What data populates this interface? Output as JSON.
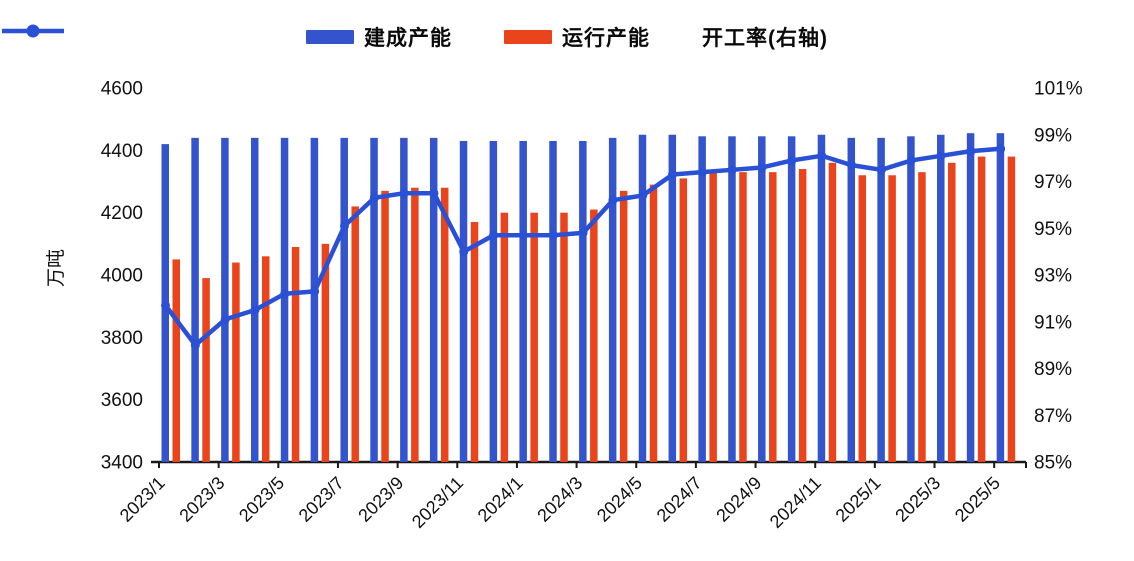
{
  "chart_data": {
    "type": "bar",
    "title": "",
    "grid": false,
    "legend_position": "top",
    "categories": [
      "2023/1",
      "2023/2",
      "2023/3",
      "2023/4",
      "2023/5",
      "2023/6",
      "2023/7",
      "2023/8",
      "2023/9",
      "2023/10",
      "2023/11",
      "2023/12",
      "2024/1",
      "2024/2",
      "2024/3",
      "2024/4",
      "2024/5",
      "2024/6",
      "2024/7",
      "2024/8",
      "2024/9",
      "2024/10",
      "2024/11",
      "2024/12",
      "2025/1",
      "2025/2",
      "2025/3",
      "2025/4",
      "2025/5"
    ],
    "x_tick_labels": [
      "2023/1",
      "2023/3",
      "2023/5",
      "2023/7",
      "2023/9",
      "2023/11",
      "2024/1",
      "2024/3",
      "2024/5",
      "2024/7",
      "2024/9",
      "2024/11",
      "2025/1",
      "2025/3",
      "2025/5"
    ],
    "series": [
      {
        "name": "建成产能",
        "type": "bar",
        "axis": "left",
        "color": "#3354cd",
        "values": [
          4420,
          4440,
          4440,
          4440,
          4440,
          4440,
          4440,
          4440,
          4440,
          4440,
          4430,
          4430,
          4430,
          4430,
          4430,
          4440,
          4450,
          4450,
          4445,
          4445,
          4445,
          4445,
          4450,
          4440,
          4440,
          4445,
          4450,
          4455,
          4455
        ]
      },
      {
        "name": "运行产能",
        "type": "bar",
        "axis": "left",
        "color": "#e9441c",
        "values": [
          4050,
          3990,
          4040,
          4060,
          4090,
          4100,
          4220,
          4270,
          4280,
          4280,
          4170,
          4200,
          4200,
          4200,
          4210,
          4270,
          4290,
          4310,
          4330,
          4330,
          4330,
          4340,
          4360,
          4320,
          4320,
          4330,
          4360,
          4380,
          4380
        ]
      },
      {
        "name": "开工率(右轴)",
        "type": "line",
        "axis": "right",
        "color": "#2a50d6",
        "values": [
          91.7,
          90.0,
          91.1,
          91.5,
          92.2,
          92.3,
          95.1,
          96.3,
          96.5,
          96.5,
          94.0,
          94.7,
          94.7,
          94.7,
          94.8,
          96.2,
          96.4,
          97.3,
          97.4,
          97.5,
          97.6,
          97.9,
          98.1,
          97.7,
          97.5,
          97.9,
          98.1,
          98.3,
          98.4
        ]
      }
    ],
    "left_axis": {
      "label": "万吨",
      "min": 3400,
      "max": 4600,
      "tick_step": 200,
      "tick_labels": [
        "4600",
        "4400",
        "4200",
        "4000",
        "3800",
        "3600",
        "3400"
      ]
    },
    "right_axis": {
      "label": "",
      "min": 85,
      "max": 101,
      "tick_step": 2,
      "unit": "%",
      "tick_labels": [
        "101%",
        "99%",
        "97%",
        "95%",
        "93%",
        "91%",
        "89%",
        "87%",
        "85%"
      ]
    },
    "axis_color": "#1a1a1a"
  }
}
